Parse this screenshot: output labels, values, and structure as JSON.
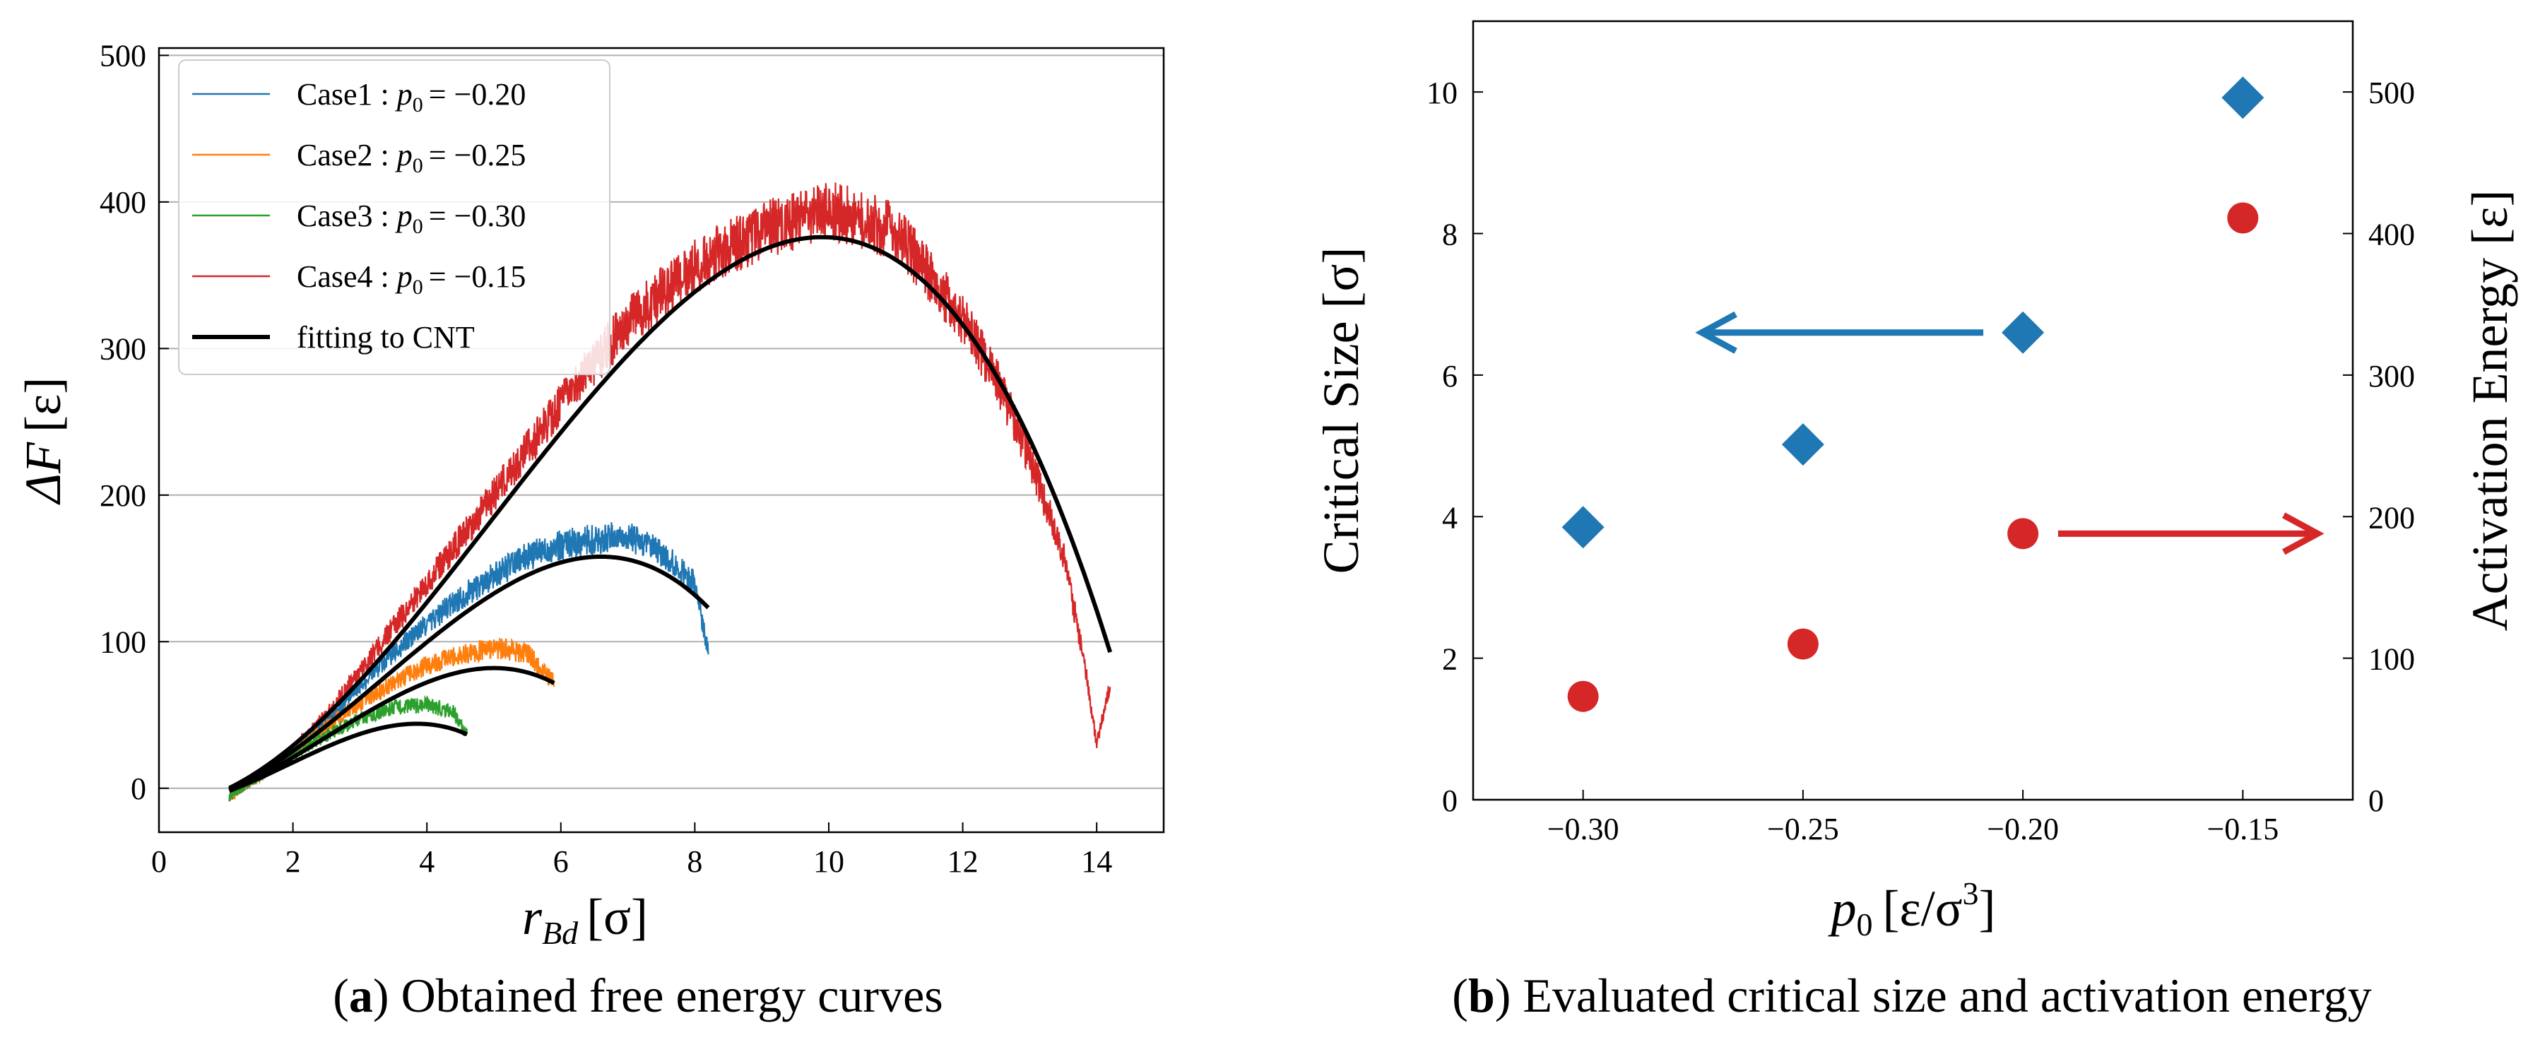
{
  "chart_data": [
    {
      "id": "a",
      "type": "line",
      "caption": {
        "label": "a",
        "text": ") Obtained free energy curves"
      },
      "xlabel": "r",
      "xlabel_sub": "Bd",
      "xlabel_unit": "[σ]",
      "ylabel": "ΔF",
      "ylabel_unit": "[ε]",
      "xlim": [
        0,
        15
      ],
      "ylim": [
        -30,
        505
      ],
      "xticks": [
        0,
        2,
        4,
        6,
        8,
        10,
        12,
        14
      ],
      "yticks": [
        0,
        100,
        200,
        300,
        400,
        500
      ],
      "grid": "horizontal",
      "legend_position": "top-left",
      "series": [
        {
          "name": "Case1",
          "legend_label": "Case1 : ",
          "p0": "−0.20",
          "color": "#1f77b4",
          "x": [
            1.05,
            1.5,
            2.0,
            2.5,
            3.0,
            3.5,
            4.0,
            4.5,
            5.0,
            5.5,
            6.0,
            6.5,
            7.0,
            7.5,
            8.0,
            8.2
          ],
          "y": [
            -6,
            8,
            26,
            45,
            70,
            92,
            112,
            130,
            145,
            158,
            166,
            170,
            172,
            160,
            140,
            95
          ]
        },
        {
          "name": "Case2",
          "legend_label": "Case2 : ",
          "p0": "−0.25",
          "color": "#ff7f0e",
          "x": [
            1.05,
            1.5,
            2.0,
            2.5,
            3.0,
            3.5,
            4.0,
            4.5,
            5.0,
            5.5,
            5.9
          ],
          "y": [
            -6,
            8,
            25,
            42,
            58,
            72,
            84,
            91,
            96,
            92,
            72
          ]
        },
        {
          "name": "Case3",
          "legend_label": "Case3 : ",
          "p0": "−0.30",
          "color": "#2ca02c",
          "x": [
            1.05,
            1.5,
            2.0,
            2.5,
            3.0,
            3.5,
            4.0,
            4.4,
            4.6
          ],
          "y": [
            -6,
            8,
            22,
            36,
            47,
            55,
            57,
            52,
            35
          ]
        },
        {
          "name": "Case4",
          "legend_label": "Case4 : ",
          "p0": "−0.15",
          "color": "#d62728",
          "x": [
            1.05,
            1.5,
            2.0,
            2.5,
            3.0,
            4.0,
            5.0,
            6.0,
            7.0,
            8.0,
            9.0,
            10.0,
            11.0,
            12.0,
            12.5,
            13.0,
            13.5,
            13.8,
            14.0,
            14.2
          ],
          "y": [
            -6,
            8,
            26,
            50,
            80,
            140,
            200,
            262,
            318,
            357,
            380,
            395,
            380,
            320,
            280,
            225,
            160,
            90,
            30,
            70
          ]
        },
        {
          "name": "fitting to CNT",
          "legend_label": "fitting to CNT",
          "color": "#000000",
          "is_fit": true
        }
      ],
      "fits": [
        {
          "r_star": 6.6,
          "dF_star": 170,
          "x_range": [
            1.05,
            8.2
          ]
        },
        {
          "r_star": 5.0,
          "dF_star": 94,
          "x_range": [
            1.05,
            5.9
          ]
        },
        {
          "r_star": 3.85,
          "dF_star": 56,
          "x_range": [
            1.05,
            4.6
          ]
        },
        {
          "r_star": 9.9,
          "dF_star": 388,
          "x_range": [
            1.05,
            14.2
          ]
        }
      ]
    },
    {
      "id": "b",
      "type": "scatter",
      "caption": {
        "label": "b",
        "text": ") Evaluated critical size and activation energy"
      },
      "xlabel": "p",
      "xlabel_sub": "0",
      "xlabel_unit_pre": "[ε/σ",
      "xlabel_unit_sup": "3",
      "xlabel_unit_post": "]",
      "ylabel_left": "Critical Size [σ]",
      "ylabel_right": "Activation Energy [ε]",
      "xlim": [
        -0.325,
        -0.125
      ],
      "ylim_left": [
        0,
        11
      ],
      "ylim_right": [
        0,
        550
      ],
      "xticks": [
        -0.3,
        -0.25,
        -0.2,
        -0.15
      ],
      "xtick_labels": [
        "−0.30",
        "−0.25",
        "−0.20",
        "−0.15"
      ],
      "yticks_left": [
        0,
        2,
        4,
        6,
        8,
        10
      ],
      "yticks_right": [
        0,
        100,
        200,
        300,
        400,
        500
      ],
      "series": [
        {
          "name": "Critical Size",
          "axis": "left",
          "marker": "diamond",
          "color": "#1f77b4",
          "x": [
            -0.3,
            -0.25,
            -0.2,
            -0.15
          ],
          "y": [
            3.85,
            5.02,
            6.6,
            9.92
          ]
        },
        {
          "name": "Activation Energy",
          "axis": "right",
          "marker": "circle",
          "color": "#d62728",
          "x": [
            -0.3,
            -0.25,
            -0.2,
            -0.15
          ],
          "y": [
            73,
            110,
            188,
            411
          ]
        }
      ],
      "annotations": [
        {
          "type": "arrow",
          "direction": "left",
          "color": "#1f77b4",
          "at_y_left": 6.6,
          "x_from": -0.209,
          "x_to": -0.273
        },
        {
          "type": "arrow",
          "direction": "right",
          "color": "#d62728",
          "at_y_right": 188,
          "x_from": -0.192,
          "x_to": -0.133
        }
      ]
    }
  ]
}
